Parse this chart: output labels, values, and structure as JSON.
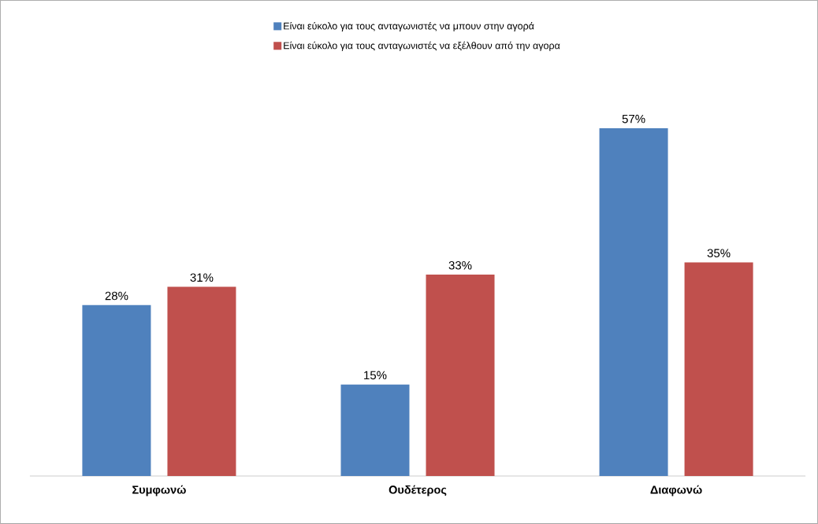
{
  "chart_data": {
    "type": "bar",
    "categories": [
      "Συμφωνώ",
      "Ουδέτερος",
      "Διαφωνώ"
    ],
    "series": [
      {
        "name": "Είναι εύκολο για τους ανταγωνιστές να μπουν στην αγορά",
        "color": "#4f81bd",
        "values": [
          28,
          15,
          57
        ],
        "value_labels": [
          "28%",
          "15%",
          "57%"
        ]
      },
      {
        "name": "Είναι εύκολο για τους ανταγωνιστές να εξέλθουν από την αγορα",
        "color": "#c0504d",
        "values": [
          31,
          33,
          35
        ],
        "value_labels": [
          "31%",
          "33%",
          "35%"
        ]
      }
    ],
    "legend": "top"
  }
}
